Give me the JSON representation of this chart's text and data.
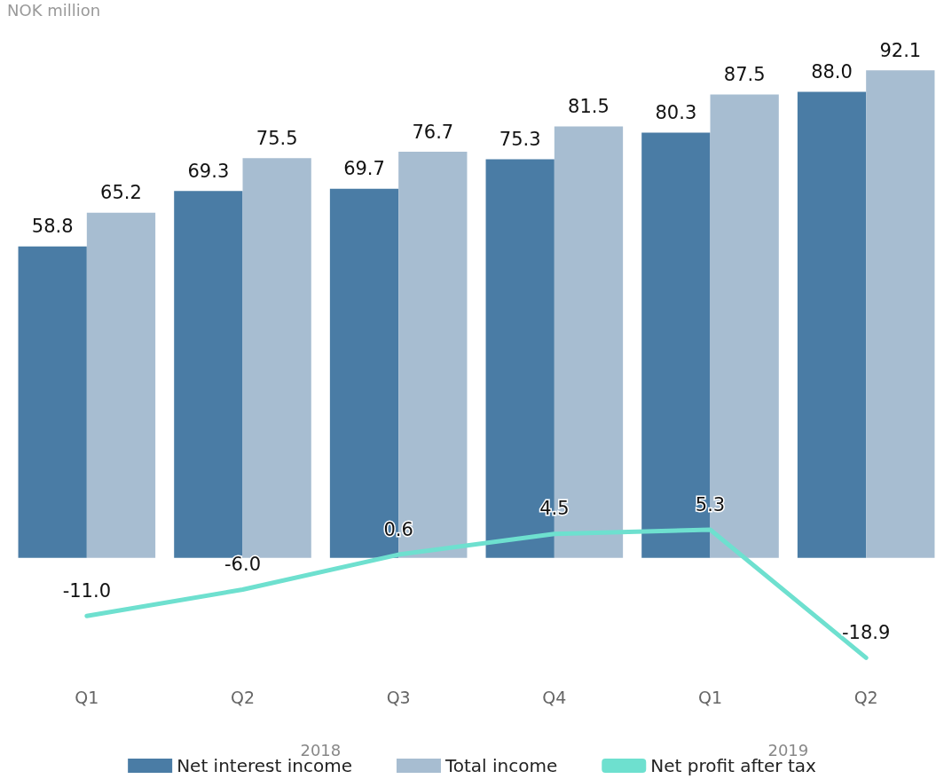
{
  "chart_data": {
    "type": "bar",
    "ylabel": "NOK million",
    "categories": [
      "Q1",
      "Q2",
      "Q3",
      "Q4",
      "Q1",
      "Q2"
    ],
    "series": [
      {
        "name": "Net interest income",
        "color": "#4a7ca5",
        "values": [
          58.8,
          69.3,
          69.7,
          75.3,
          80.3,
          88.0
        ],
        "value_labels": [
          "58.8",
          "69.3",
          "69.7",
          "75.3",
          "80.3",
          "88.0"
        ]
      },
      {
        "name": "Total income",
        "color": "#a7bdd1",
        "values": [
          65.2,
          75.5,
          76.7,
          81.5,
          87.5,
          92.1
        ],
        "value_labels": [
          "65.2",
          "75.5",
          "76.7",
          "81.5",
          "87.5",
          "92.1"
        ]
      },
      {
        "name": "Net profit after tax",
        "type": "line",
        "color": "#6ee0cf",
        "values": [
          -11.0,
          -6.0,
          0.6,
          4.5,
          5.3,
          -18.9
        ],
        "value_labels": [
          "-11.0",
          "-6.0",
          "0.6",
          "4.5",
          "5.3",
          "-18.9"
        ]
      }
    ],
    "grid": false,
    "legend": "bottom",
    "marker": "none",
    "line_style": "solid",
    "annotations": [
      "2018",
      "2019"
    ]
  }
}
